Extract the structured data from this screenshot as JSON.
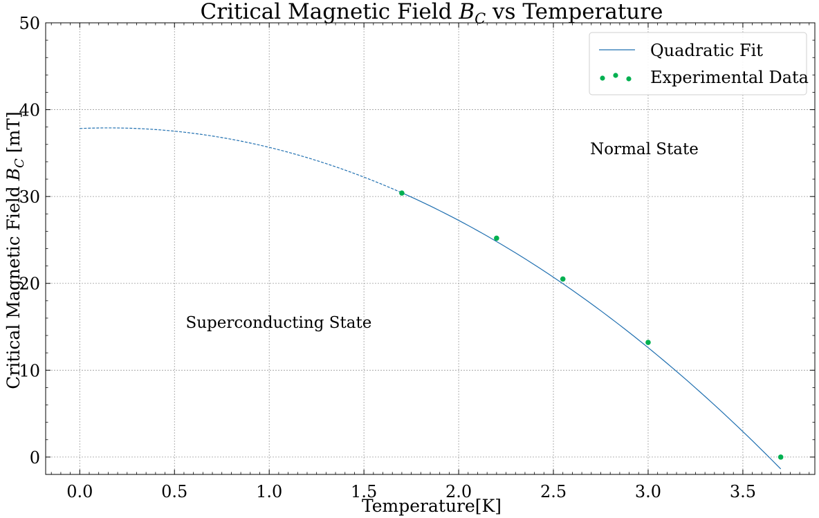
{
  "chart_data": {
    "type": "line",
    "title": "Critical Magnetic Field B_C vs Temperature",
    "title_parts": {
      "prefix": "Critical Magnetic Field ",
      "sym": "B",
      "sub": "C",
      "suffix": " vs Temperature"
    },
    "xlabel": "Temperature[K]",
    "ylabel_parts": {
      "prefix": "Critical Magnetic Field ",
      "sym": "B",
      "sub": "C",
      "unit": " [mT]"
    },
    "xlim": [
      -0.18,
      3.88
    ],
    "ylim": [
      -2,
      50
    ],
    "xticks": [
      0.0,
      0.5,
      1.0,
      1.5,
      2.0,
      2.5,
      3.0,
      3.5
    ],
    "xtick_labels": [
      "0.0",
      "0.5",
      "1.0",
      "1.5",
      "2.0",
      "2.5",
      "3.0",
      "3.5"
    ],
    "yticks": [
      0,
      10,
      20,
      30,
      40,
      50
    ],
    "ytick_labels": [
      "0",
      "10",
      "20",
      "30",
      "40",
      "50"
    ],
    "grid": true,
    "legend_position": "top-right",
    "fit": {
      "name": "Quadratic Fit",
      "color": "#1f6fb0",
      "coefficients": {
        "a": -3.12,
        "b": 0.95,
        "c": 37.83
      },
      "extrapolated_range": [
        0.0,
        1.7
      ],
      "fitted_range": [
        1.7,
        3.7
      ]
    },
    "series": [
      {
        "name": "Experimental Data",
        "type": "scatter",
        "color": "#00b050",
        "x": [
          1.7,
          2.2,
          2.55,
          3.0,
          3.7
        ],
        "y": [
          30.4,
          25.2,
          20.5,
          13.2,
          0.0
        ]
      }
    ],
    "annotations": [
      {
        "text": "Normal State",
        "x": 2.98,
        "y": 35.5
      },
      {
        "text": "Superconducting State",
        "x": 1.05,
        "y": 15.5
      }
    ]
  }
}
